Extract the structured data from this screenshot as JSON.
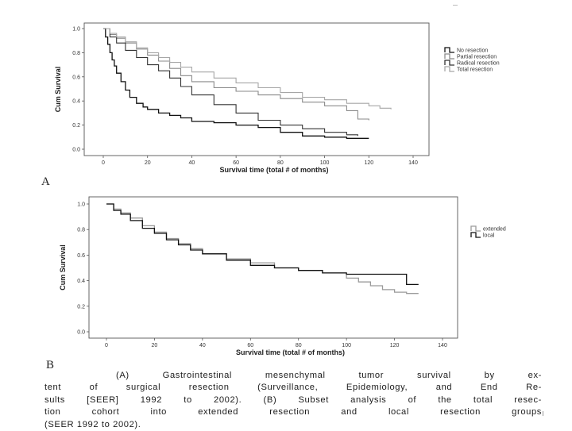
{
  "chart_data": [
    {
      "type": "line",
      "panel_label": "A",
      "xlabel": "Survival time  (total # of months)",
      "ylabel": "Cum Survival",
      "xlim": [
        0,
        140
      ],
      "ylim": [
        0,
        1.0
      ],
      "x_ticks": [
        0,
        20,
        40,
        60,
        80,
        100,
        120,
        140
      ],
      "y_ticks": [
        "1.0",
        "0.8",
        "0.6",
        "0.4",
        "0.2",
        "0.0"
      ],
      "legend_position": "right",
      "series": [
        {
          "name": "No resection",
          "color": "#111111",
          "x": [
            0,
            1,
            2,
            3,
            4,
            5,
            6,
            8,
            10,
            12,
            15,
            18,
            20,
            25,
            30,
            35,
            40,
            50,
            60,
            70,
            80,
            90,
            100,
            110,
            120
          ],
          "y": [
            1.0,
            0.93,
            0.87,
            0.8,
            0.74,
            0.69,
            0.63,
            0.56,
            0.49,
            0.43,
            0.38,
            0.35,
            0.33,
            0.3,
            0.28,
            0.26,
            0.23,
            0.22,
            0.2,
            0.18,
            0.14,
            0.11,
            0.1,
            0.09,
            0.09
          ]
        },
        {
          "name": "Partial resection",
          "color": "#8a8a8a",
          "x": [
            0,
            3,
            6,
            10,
            15,
            20,
            25,
            30,
            35,
            40,
            50,
            60,
            70,
            80,
            90,
            100,
            110,
            115,
            120
          ],
          "y": [
            1.0,
            0.95,
            0.92,
            0.88,
            0.83,
            0.78,
            0.73,
            0.67,
            0.61,
            0.56,
            0.51,
            0.48,
            0.45,
            0.42,
            0.39,
            0.36,
            0.32,
            0.25,
            0.24
          ]
        },
        {
          "name": "Radical resection",
          "color": "#333333",
          "x": [
            0,
            3,
            6,
            10,
            15,
            20,
            25,
            30,
            35,
            40,
            50,
            60,
            70,
            80,
            90,
            100,
            110,
            115
          ],
          "y": [
            1.0,
            0.93,
            0.88,
            0.82,
            0.76,
            0.7,
            0.65,
            0.59,
            0.52,
            0.45,
            0.37,
            0.3,
            0.24,
            0.2,
            0.17,
            0.14,
            0.12,
            0.11
          ]
        },
        {
          "name": "Total resection",
          "color": "#a6a6a6",
          "x": [
            0,
            3,
            6,
            10,
            15,
            20,
            25,
            30,
            35,
            40,
            50,
            60,
            70,
            80,
            90,
            100,
            110,
            120,
            125,
            130
          ],
          "y": [
            1.0,
            0.96,
            0.93,
            0.89,
            0.84,
            0.8,
            0.76,
            0.72,
            0.68,
            0.64,
            0.59,
            0.55,
            0.51,
            0.47,
            0.43,
            0.41,
            0.38,
            0.36,
            0.34,
            0.33
          ]
        }
      ]
    },
    {
      "type": "line",
      "panel_label": "B",
      "xlabel": "Survival time  (total # of months)",
      "ylabel": "Cum Survival",
      "xlim": [
        0,
        140
      ],
      "ylim": [
        0,
        1.0
      ],
      "x_ticks": [
        0,
        20,
        40,
        60,
        80,
        100,
        120,
        140
      ],
      "y_ticks": [
        "1.0",
        "0.8",
        "0.6",
        "0.4",
        "0.2",
        "0.0"
      ],
      "legend_position": "right",
      "series": [
        {
          "name": "extended",
          "color": "#9a9a9a",
          "x": [
            0,
            3,
            6,
            10,
            15,
            20,
            25,
            30,
            35,
            40,
            50,
            60,
            70,
            80,
            90,
            100,
            105,
            110,
            115,
            120,
            125,
            130
          ],
          "y": [
            1.0,
            0.96,
            0.93,
            0.89,
            0.83,
            0.78,
            0.73,
            0.69,
            0.65,
            0.61,
            0.57,
            0.54,
            0.5,
            0.48,
            0.46,
            0.42,
            0.39,
            0.36,
            0.33,
            0.31,
            0.3,
            0.3
          ]
        },
        {
          "name": "local",
          "color": "#111111",
          "x": [
            0,
            3,
            6,
            10,
            15,
            20,
            25,
            30,
            35,
            40,
            50,
            60,
            70,
            80,
            90,
            100,
            110,
            120,
            125,
            130
          ],
          "y": [
            1.0,
            0.95,
            0.92,
            0.87,
            0.81,
            0.77,
            0.72,
            0.68,
            0.64,
            0.61,
            0.56,
            0.52,
            0.5,
            0.48,
            0.46,
            0.45,
            0.45,
            0.45,
            0.37,
            0.37
          ]
        }
      ]
    }
  ],
  "caption": {
    "line1": "(A) Gastrointestinal mesenchymal tumor survival by ex-",
    "line2": "tent of surgical resection (Surveillance, Epidemiology, and End Re-",
    "line3": "sults [SEER] 1992 to 2002). (B) Subset analysis of the total resec-",
    "line4": "tion cohort into extended resection and local resection groups",
    "line5": "(SEER 1992 to 2002)."
  }
}
